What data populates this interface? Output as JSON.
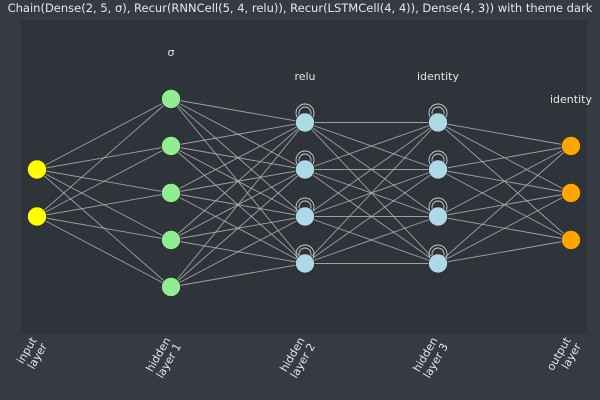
{
  "title": "Chain(Dense(2, 5, σ), Recur(RNNCell(5, 4, relu)), Recur(LSTMCell(4, 4)), Dense(4, 3)) with theme dark",
  "layers": [
    {
      "id": "input",
      "label_line1": "input",
      "label_line2": "layer",
      "activation": "",
      "neurons": 2,
      "recurrent": false,
      "color": "#ffff00"
    },
    {
      "id": "hidden1",
      "label_line1": "hidden",
      "label_line2": "layer 1",
      "activation": "σ",
      "neurons": 5,
      "recurrent": false,
      "color": "#90ee90"
    },
    {
      "id": "hidden2",
      "label_line1": "hidden",
      "label_line2": "layer 2",
      "activation": "relu",
      "neurons": 4,
      "recurrent": true,
      "color": "#add8e6"
    },
    {
      "id": "hidden3",
      "label_line1": "hidden",
      "label_line2": "layer 3",
      "activation": "identity",
      "neurons": 4,
      "recurrent": true,
      "color": "#add8e6"
    },
    {
      "id": "output",
      "label_line1": "output",
      "label_line2": "layer",
      "activation": "identity",
      "neurons": 3,
      "recurrent": false,
      "color": "#ffa500"
    }
  ],
  "colors": {
    "background": "#353a43",
    "plot_area": "#2f333a",
    "edge": "#b4b4b4",
    "loop": "#d0d0d0",
    "text": "#e6e6e6"
  }
}
